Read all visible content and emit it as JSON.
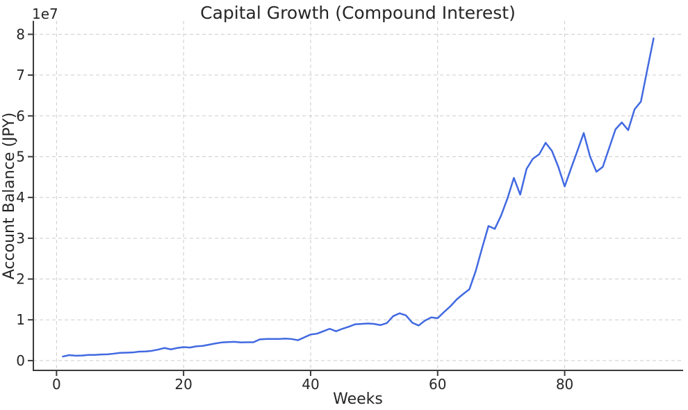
{
  "figure": {
    "background": "#ffffff"
  },
  "chart_data": {
    "type": "line",
    "title": "Capital Growth (Compound Interest)",
    "xlabel": "Weeks",
    "ylabel": "Account Balance (JPY)",
    "y_offset_label": "1e7",
    "legend": null,
    "grid": true,
    "grid_color": "#cccccc",
    "spine_color": "#3a3a3a",
    "text_color": "#262626",
    "line_color": "#4169e1",
    "line_width": 2.5,
    "xlim": [
      -3.65,
      98.65
    ],
    "ylim": [
      -2400000,
      83300000
    ],
    "xticks": [
      0,
      20,
      40,
      60,
      80
    ],
    "yticks": [
      0,
      10000000,
      20000000,
      30000000,
      40000000,
      50000000,
      60000000,
      70000000,
      80000000
    ],
    "ytick_labels": [
      "0",
      "1",
      "2",
      "3",
      "4",
      "5",
      "6",
      "7",
      "8"
    ],
    "x": [
      1,
      2,
      3,
      4,
      5,
      6,
      7,
      8,
      9,
      10,
      11,
      12,
      13,
      14,
      15,
      16,
      17,
      18,
      19,
      20,
      21,
      22,
      23,
      24,
      25,
      26,
      27,
      28,
      29,
      30,
      31,
      32,
      33,
      34,
      35,
      36,
      37,
      38,
      39,
      40,
      41,
      42,
      43,
      44,
      45,
      46,
      47,
      48,
      49,
      50,
      51,
      52,
      53,
      54,
      55,
      56,
      57,
      58,
      59,
      60,
      61,
      62,
      63,
      64,
      65,
      66,
      67,
      68,
      69,
      70,
      71,
      72,
      73,
      74,
      75,
      76,
      77,
      78,
      79,
      80,
      81,
      82,
      83,
      84,
      85,
      86,
      87,
      88,
      89,
      90,
      91,
      92,
      93,
      94
    ],
    "y": [
      1000000,
      1350000,
      1200000,
      1250000,
      1400000,
      1400000,
      1500000,
      1550000,
      1700000,
      1900000,
      1950000,
      2000000,
      2200000,
      2250000,
      2400000,
      2700000,
      3100000,
      2750000,
      3100000,
      3300000,
      3200000,
      3500000,
      3600000,
      3900000,
      4200000,
      4450000,
      4550000,
      4600000,
      4450000,
      4500000,
      4500000,
      5200000,
      5300000,
      5300000,
      5300000,
      5400000,
      5300000,
      5000000,
      5700000,
      6400000,
      6600000,
      7200000,
      7800000,
      7200000,
      7800000,
      8300000,
      8900000,
      9000000,
      9100000,
      9000000,
      8700000,
      9200000,
      10900000,
      11600000,
      11100000,
      9300000,
      8600000,
      9800000,
      10600000,
      10400000,
      11900000,
      13300000,
      15000000,
      16300000,
      17500000,
      22000000,
      27600000,
      33000000,
      32300000,
      35600000,
      39800000,
      44800000,
      40700000,
      47000000,
      49500000,
      50600000,
      53400000,
      51400000,
      47500000,
      42700000,
      47100000,
      51400000,
      55800000,
      50000000,
      46300000,
      47500000,
      52100000,
      56700000,
      58400000,
      56500000,
      61600000,
      63500000,
      71300000,
      79000000
    ]
  }
}
